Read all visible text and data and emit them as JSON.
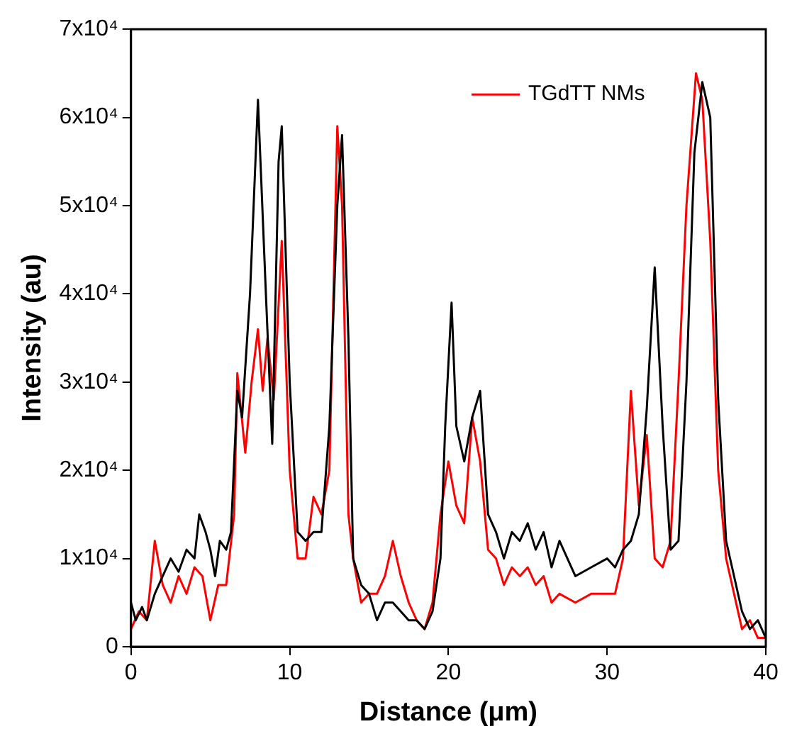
{
  "chart_data": {
    "type": "line",
    "xlabel": "Distance (μm)",
    "ylabel": "Intensity (au)",
    "xlim": [
      0,
      40
    ],
    "xticks": [
      0,
      10,
      20,
      30,
      40
    ],
    "ylim": [
      0,
      70000
    ],
    "yticks": [
      0,
      {
        "value": 10000,
        "label": "1x10⁴"
      },
      {
        "value": 20000,
        "label": "2x10⁴"
      },
      {
        "value": 30000,
        "label": "3x10⁴"
      },
      {
        "value": 40000,
        "label": "4x10⁴"
      },
      {
        "value": 50000,
        "label": "5x10⁴"
      },
      {
        "value": 60000,
        "label": "6x10⁴"
      },
      {
        "value": 70000,
        "label": "7x10⁴"
      }
    ],
    "grid": false,
    "legend": "top right",
    "marker": "none",
    "line_style": "solid",
    "series": [
      {
        "color": "#000000",
        "x": [
          0,
          0.3,
          0.7,
          1,
          1.5,
          2,
          2.5,
          3,
          3.5,
          4,
          4.3,
          4.7,
          5,
          5.3,
          5.6,
          6,
          6.3,
          6.7,
          7,
          7.5,
          8,
          8.5,
          8.9,
          9.3,
          9.5,
          10,
          10.5,
          11,
          11.5,
          12,
          12.5,
          13,
          13.3,
          13.7,
          14,
          14.5,
          15,
          15.5,
          16,
          16.5,
          17,
          17.5,
          18,
          18.5,
          19,
          19.5,
          19.8,
          20.2,
          20.5,
          21,
          21.5,
          22,
          22.5,
          23,
          23.5,
          24,
          24.5,
          25,
          25.5,
          26,
          26.5,
          27,
          27.5,
          28,
          29,
          30,
          30.5,
          31,
          31.5,
          32,
          32.5,
          33,
          33.5,
          34,
          34.5,
          35,
          35.5,
          36,
          36.5,
          37,
          37.5,
          38,
          38.5,
          39,
          39.5,
          40
        ],
        "values": [
          5000,
          3000,
          4500,
          3000,
          6000,
          8000,
          10000,
          8500,
          11000,
          10000,
          15000,
          13000,
          11000,
          8000,
          12000,
          11000,
          13000,
          29000,
          26000,
          40000,
          62000,
          40000,
          23000,
          55000,
          59000,
          30000,
          13000,
          12000,
          13000,
          13000,
          25000,
          50000,
          58000,
          35000,
          10000,
          7000,
          6000,
          3000,
          5000,
          5000,
          4000,
          3000,
          3000,
          2000,
          4000,
          10000,
          25000,
          39000,
          25000,
          21000,
          26000,
          29000,
          15000,
          13000,
          10000,
          13000,
          12000,
          14000,
          11000,
          13000,
          9000,
          12000,
          10000,
          8000,
          9000,
          10000,
          9000,
          11000,
          12000,
          15000,
          27000,
          43000,
          25000,
          11000,
          12000,
          30000,
          56000,
          64000,
          60000,
          28000,
          12000,
          8000,
          4000,
          2000,
          3000,
          1000
        ]
      },
      {
        "name": "TGdTT NMs",
        "color": "#ff0000",
        "x": [
          0,
          0.5,
          1,
          1.5,
          2,
          2.5,
          3,
          3.5,
          4,
          4.5,
          5,
          5.5,
          6,
          6.5,
          6.7,
          7.2,
          7.6,
          8,
          8.3,
          8.6,
          9,
          9.5,
          10,
          10.5,
          11,
          11.5,
          12,
          12.5,
          13,
          13.3,
          13.7,
          14,
          14.5,
          15,
          15.5,
          16,
          16.5,
          17,
          17.5,
          18,
          18.5,
          19,
          19.5,
          20,
          20.5,
          21,
          21.5,
          22,
          22.5,
          23,
          23.5,
          24,
          24.5,
          25,
          25.5,
          26,
          26.5,
          27,
          28,
          29,
          30,
          30.5,
          31,
          31.5,
          32,
          32.5,
          33,
          33.5,
          34,
          34.5,
          35,
          35.6,
          36,
          36.5,
          37,
          37.5,
          38,
          38.5,
          39,
          39.5,
          40
        ],
        "values": [
          2000,
          4000,
          3000,
          12000,
          7000,
          5000,
          8000,
          6000,
          9000,
          8000,
          3000,
          7000,
          7000,
          15000,
          31000,
          22000,
          30000,
          36000,
          29000,
          35000,
          28000,
          46000,
          20000,
          10000,
          10000,
          17000,
          15000,
          20000,
          59000,
          50000,
          15000,
          10000,
          5000,
          6000,
          6000,
          8000,
          12000,
          8000,
          5000,
          3000,
          2000,
          5000,
          15000,
          21000,
          16000,
          14000,
          26000,
          21000,
          11000,
          10000,
          7000,
          9000,
          8000,
          9000,
          7000,
          8000,
          5000,
          6000,
          5000,
          6000,
          6000,
          6000,
          10000,
          29000,
          16000,
          24000,
          10000,
          9000,
          12000,
          30000,
          50000,
          65000,
          62000,
          46000,
          20000,
          10000,
          6000,
          2000,
          3000,
          1000,
          1000
        ]
      }
    ]
  }
}
